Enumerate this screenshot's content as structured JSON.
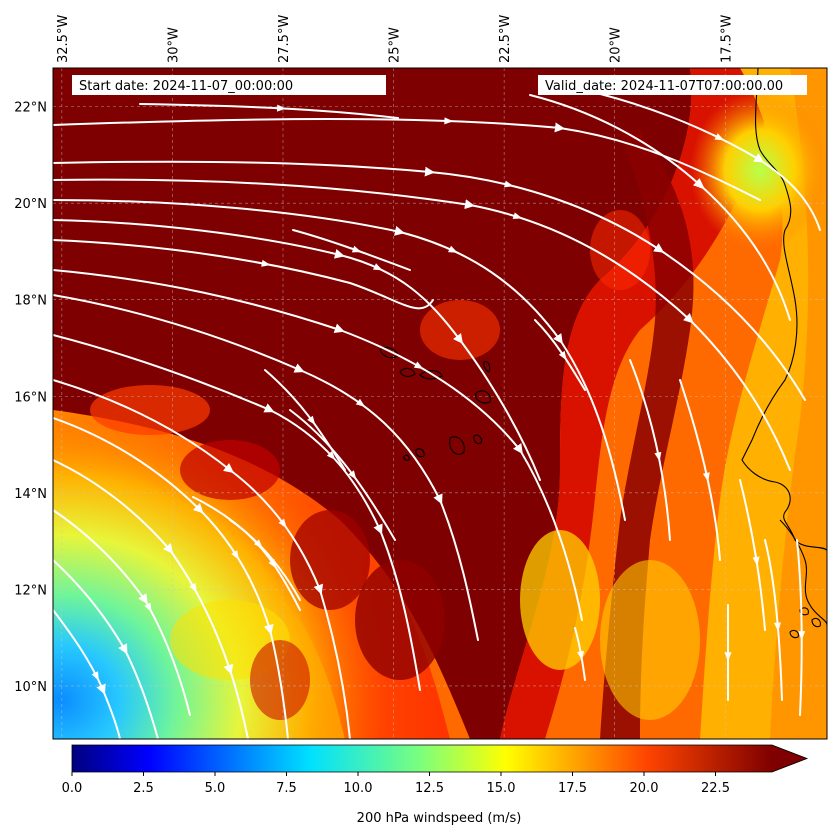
{
  "header": {
    "start_date": "Start date: 2024-11-07_00:00:00",
    "valid_date": "Valid_date: 2024-11-07T07:00:00.00"
  },
  "map": {
    "lon_labels": [
      "32.5°W",
      "30°W",
      "27.5°W",
      "25°W",
      "22.5°W",
      "20°W",
      "17.5°W"
    ],
    "lat_labels": [
      "22°N",
      "20°N",
      "18°N",
      "16°N",
      "14°N",
      "12°N",
      "10°N"
    ],
    "extent": {
      "lon_min": -32.7,
      "lon_max": -15.2,
      "lat_min": 8.9,
      "lat_max": 22.8
    },
    "colors": {
      "high_wind": "#7f0000",
      "mid_wind": "#ff4500",
      "low_wind": "#3fa9ff",
      "streamline": "#ffffff",
      "coastline": "#000000",
      "gridline": "#bfbfbf"
    }
  },
  "colorbar": {
    "ticks": [
      "0.0",
      "2.5",
      "5.0",
      "7.5",
      "10.0",
      "12.5",
      "15.0",
      "17.5",
      "20.0",
      "22.5"
    ],
    "label": "200 hPa windspeed (m/s)",
    "range": [
      0,
      25
    ],
    "colormap": "jet",
    "extend": "max"
  }
}
